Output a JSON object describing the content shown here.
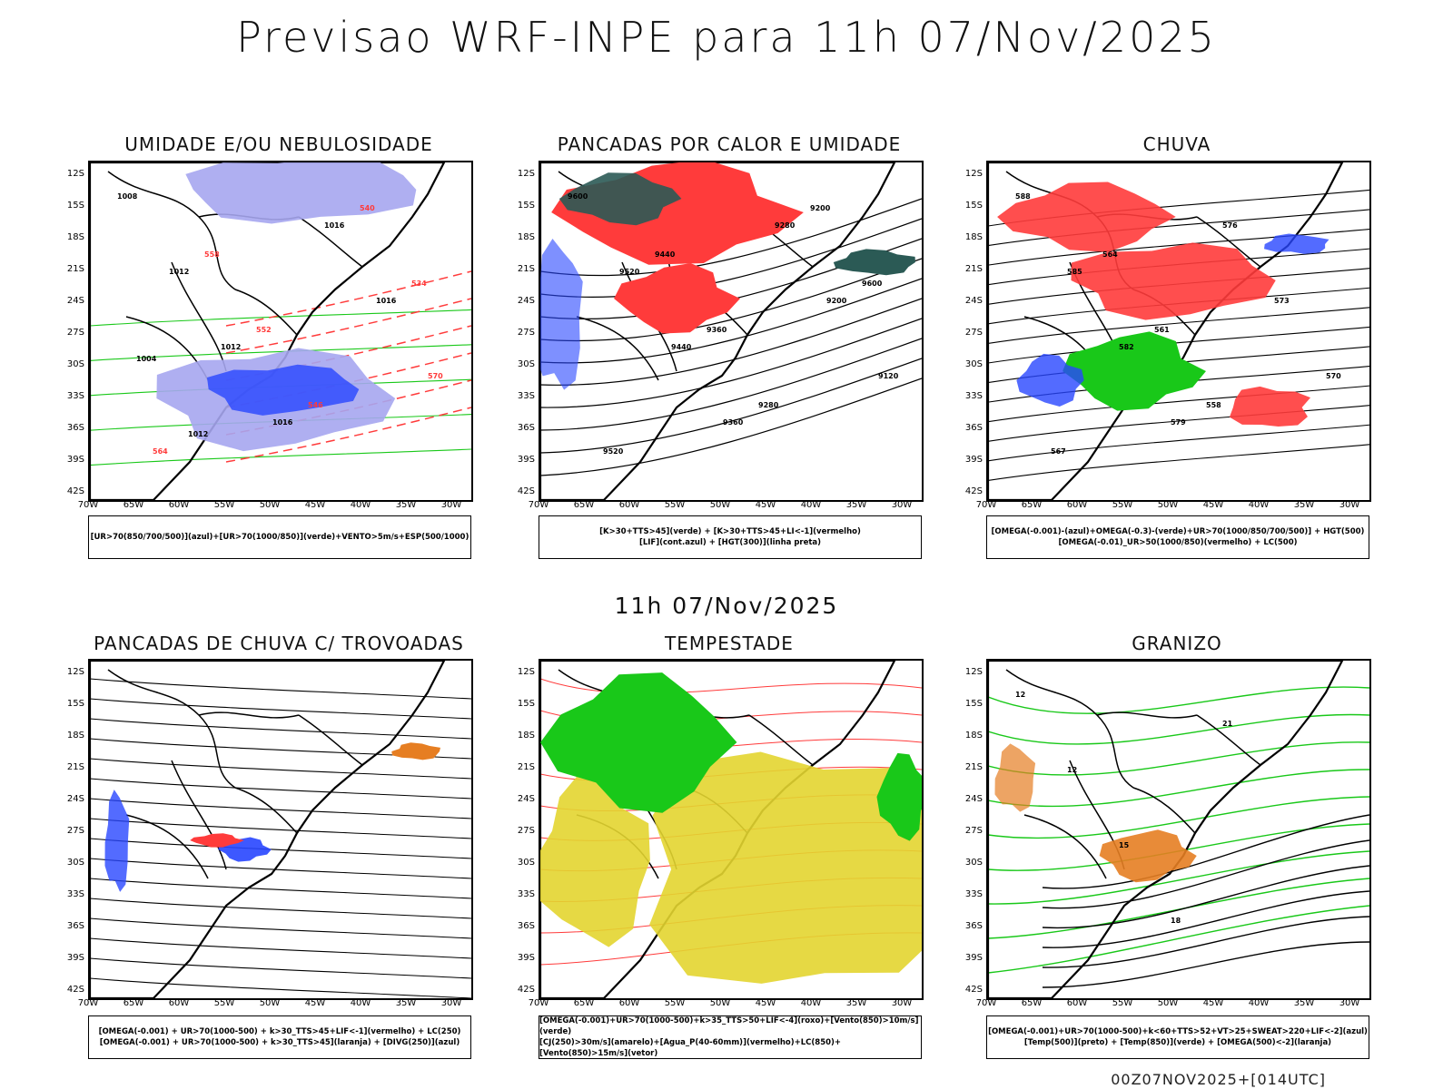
{
  "main_title": "Previsao WRF-INPE  para 11h 07/Nov/2025",
  "mid_title": "11h 07/Nov/2025",
  "footer": "00Z07NOV2025+[014UTC]",
  "axes": {
    "lat_labels": [
      "12S",
      "15S",
      "18S",
      "21S",
      "24S",
      "27S",
      "30S",
      "33S",
      "36S",
      "39S",
      "42S"
    ],
    "lon_labels": [
      "70W",
      "65W",
      "60W",
      "55W",
      "50W",
      "45W",
      "40W",
      "35W",
      "30W"
    ]
  },
  "panels": [
    {
      "title": "UMIDADE E/OU NEBULOSIDADE",
      "legend": [
        "[UR>70(850/700/500)](azul)+[UR>70(1000/850)](verde)+VENTO>5m/s+ESP(500/1000)"
      ],
      "contour_labels": [
        "1008",
        "1012",
        "1012",
        "1016",
        "1016",
        "1016",
        "570",
        "564",
        "558",
        "552",
        "546",
        "540",
        "534",
        "1004",
        "1012"
      ]
    },
    {
      "title": "PANCADAS POR CALOR E UMIDADE",
      "legend": [
        "[K>30+TTS>45](verde) + [K>30+TTS>45+LI<-1](vermelho)",
        "[LIF](cont.azul) + [HGT(300)](linha preta)"
      ],
      "contour_labels": [
        "9600",
        "9520",
        "9440",
        "9360",
        "9280",
        "9200",
        "9120",
        "9520",
        "9440",
        "9360",
        "9280",
        "9200",
        "9600"
      ]
    },
    {
      "title": "CHUVA",
      "legend": [
        "[OMEGA(-0.001)-(azul)+OMEGA(-0.3)-(verde)+UR>70(1000/850/700/500)] + HGT(500)",
        "[OMEGA(-0.01)_UR>50(1000/850)(vermelho) + LC(500)"
      ],
      "contour_labels": [
        "588",
        "585",
        "582",
        "579",
        "576",
        "573",
        "570",
        "567",
        "564",
        "561",
        "558"
      ]
    },
    {
      "title": "PANCADAS DE CHUVA C/ TROVOADAS",
      "legend": [
        "[OMEGA(-0.001) + UR>70(1000-500) + k>30_TTS>45+LIF<-1](vermelho) + LC(250)",
        "[OMEGA(-0.001) + UR>70(1000-500) + k>30_TTS>45](laranja) + [DIVG(250)](azul)"
      ],
      "contour_labels": []
    },
    {
      "title": "TEMPESTADE",
      "legend": [
        "[OMEGA(-0.001)+UR>70(1000-500)+k>35_TTS>50+LIF<-4](roxo)+[Vento(850)>10m/s](verde)",
        "[CJ(250)>30m/s](amarelo)+[Agua_P(40-60mm)](vermelho)+LC(850)+[Vento(850)>15m/s](vetor)"
      ],
      "contour_labels": []
    },
    {
      "title": "GRANIZO",
      "legend": [
        "[OMEGA(-0.001)+UR>70(1000-500)+k<60+TTS>52+VT>25+SWEAT>220+LIF<-2](azul)",
        "[Temp(500)](preto) + [Temp(850)](verde) + [OMEGA(500)<-2](laranja)"
      ],
      "contour_labels": [
        "12",
        "12",
        "15",
        "18",
        "21"
      ]
    }
  ],
  "colors": {
    "red": "#ff3b3b",
    "green": "#19c819",
    "blue": "#2846ff",
    "lavender": "#a6a6f0",
    "darkteal": "#2b5a55",
    "yellow": "#e3d530",
    "orange": "#e67e22"
  }
}
